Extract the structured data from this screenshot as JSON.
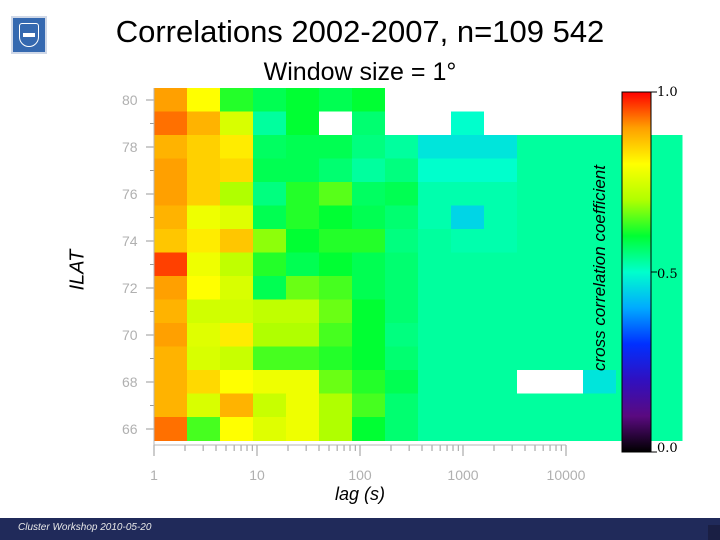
{
  "header": {
    "title": "Correlations 2002-2007, n=109 542",
    "subtitle": "Window size = 1°"
  },
  "footer": {
    "text": "Cluster Workshop 2010-05-20"
  },
  "chart_data": {
    "type": "heatmap",
    "xlabel": "lag (s)",
    "ylabel": "ILAT",
    "colorbar_label": "cross correlation coefficient",
    "x_scale": "log",
    "x_ticks": [
      "1",
      "10",
      "100",
      "1000",
      "10000"
    ],
    "y_ticks": [
      "66",
      "68",
      "70",
      "72",
      "74",
      "76",
      "78",
      "80"
    ],
    "colorbar_ticks": [
      "1.0",
      "0.5",
      "0.0"
    ],
    "colorbar_range": [
      0.0,
      1.0
    ],
    "x_columns": [
      "1.6",
      "3",
      "6",
      "10",
      "18",
      "32",
      "56",
      "100",
      "180",
      "320",
      "560",
      "1000",
      "1800",
      "3200",
      "5600",
      "10000"
    ],
    "y_rows": [
      "80",
      "79",
      "78",
      "77",
      "76",
      "75",
      "74",
      "73",
      "72",
      "71",
      "70",
      "69",
      "68",
      "67",
      "66"
    ],
    "values": [
      [
        0.9,
        0.8,
        0.62,
        0.58,
        0.6,
        0.58,
        0.6,
        null,
        null,
        null,
        null,
        null,
        null,
        null,
        null,
        null
      ],
      [
        0.93,
        0.88,
        0.75,
        0.53,
        0.6,
        null,
        0.56,
        null,
        null,
        0.5,
        null,
        null,
        null,
        null,
        null,
        null
      ],
      [
        0.88,
        0.85,
        0.82,
        0.57,
        0.58,
        0.58,
        0.55,
        0.53,
        0.47,
        0.47,
        0.47,
        0.53,
        0.53,
        0.53,
        0.53,
        0.53
      ],
      [
        0.9,
        0.85,
        0.84,
        0.58,
        0.58,
        0.56,
        0.53,
        0.55,
        0.5,
        0.5,
        0.5,
        0.53,
        0.53,
        0.53,
        0.53,
        0.53
      ],
      [
        0.9,
        0.85,
        0.7,
        0.55,
        0.62,
        0.65,
        0.57,
        0.58,
        0.52,
        0.52,
        0.52,
        0.53,
        0.53,
        0.53,
        0.53,
        0.53
      ],
      [
        0.88,
        0.78,
        0.76,
        0.58,
        0.62,
        0.6,
        0.58,
        0.56,
        0.52,
        0.45,
        0.52,
        0.53,
        0.53,
        0.53,
        0.53,
        0.53
      ],
      [
        0.86,
        0.82,
        0.86,
        0.68,
        0.6,
        0.62,
        0.62,
        0.55,
        0.53,
        0.52,
        0.52,
        0.53,
        0.53,
        0.53,
        0.53,
        0.53
      ],
      [
        0.96,
        0.78,
        0.72,
        0.62,
        0.58,
        0.6,
        0.58,
        0.56,
        0.53,
        0.53,
        0.53,
        0.53,
        0.53,
        0.53,
        0.53,
        0.53
      ],
      [
        0.9,
        0.8,
        0.75,
        0.58,
        0.66,
        0.64,
        0.58,
        0.56,
        0.53,
        0.53,
        0.53,
        0.53,
        0.53,
        0.53,
        0.53,
        0.53
      ],
      [
        0.88,
        0.74,
        0.74,
        0.72,
        0.72,
        0.66,
        0.6,
        0.56,
        0.53,
        0.53,
        0.53,
        0.53,
        0.53,
        0.53,
        0.53,
        0.53
      ],
      [
        0.9,
        0.76,
        0.82,
        0.7,
        0.7,
        0.64,
        0.6,
        0.55,
        0.53,
        0.53,
        0.53,
        0.53,
        0.53,
        0.53,
        0.53,
        0.53
      ],
      [
        0.88,
        0.75,
        0.73,
        0.64,
        0.64,
        0.62,
        0.6,
        0.56,
        0.53,
        0.53,
        0.53,
        0.53,
        0.53,
        0.53,
        0.53,
        0.53
      ],
      [
        0.88,
        0.84,
        0.8,
        0.78,
        0.78,
        0.66,
        0.62,
        0.58,
        0.53,
        0.53,
        0.53,
        null,
        null,
        0.47,
        0.53,
        0.53
      ],
      [
        0.88,
        0.75,
        0.88,
        0.73,
        0.78,
        0.7,
        0.64,
        0.56,
        0.53,
        0.53,
        0.53,
        0.53,
        0.53,
        0.53,
        0.53,
        0.53
      ],
      [
        0.93,
        0.64,
        0.8,
        0.76,
        0.78,
        0.7,
        0.6,
        0.56,
        0.53,
        0.53,
        0.53,
        0.53,
        0.53,
        0.53,
        0.53,
        0.53
      ]
    ]
  }
}
